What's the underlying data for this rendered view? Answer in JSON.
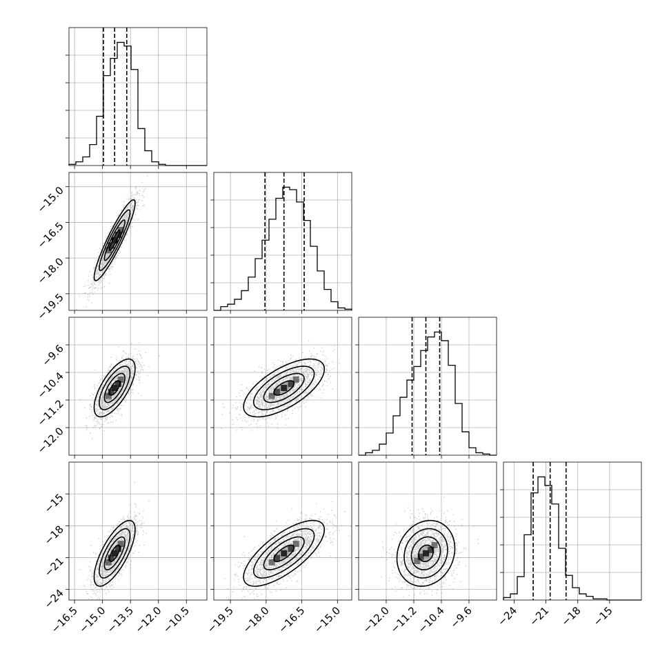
{
  "chart_data": {
    "type": "corner",
    "parameters": [
      {
        "range": [
          -16.8,
          -9.4
        ],
        "ticks": [
          -16.5,
          -15.0,
          -13.5,
          -12.0,
          -10.5
        ],
        "tick_labels": [
          "−16.5",
          "−15.0",
          "−13.5",
          "−12.0",
          "−10.5"
        ],
        "quantiles": [
          -14.95,
          -14.35,
          -13.7
        ],
        "hist_max": 1.0,
        "hist_bins": [
          0.01,
          0.03,
          0.07,
          0.17,
          0.4,
          0.73,
          0.87,
          1.0,
          0.97,
          0.78,
          0.3,
          0.12,
          0.03,
          0.01,
          0.0,
          0.0,
          0.0,
          0.0,
          0.0,
          0.0
        ]
      },
      {
        "range": [
          -20.2,
          -14.4
        ],
        "ticks": [
          -19.5,
          -18.0,
          -16.5,
          -15.0
        ],
        "tick_labels": [
          "−19.5",
          "−18.0",
          "−16.5",
          "−15.0"
        ],
        "quantiles": [
          -18.05,
          -17.25,
          -16.4
        ],
        "hist_max": 1.0,
        "hist_bins": [
          0.0,
          0.03,
          0.05,
          0.09,
          0.16,
          0.27,
          0.42,
          0.57,
          0.74,
          0.91,
          1.0,
          0.98,
          0.88,
          0.73,
          0.52,
          0.32,
          0.17,
          0.07,
          0.02,
          0.01
        ]
      },
      {
        "range": [
          -12.8,
          -8.8
        ],
        "ticks": [
          -12.0,
          -11.2,
          -10.4,
          -9.6
        ],
        "tick_labels": [
          "−12.0",
          "−11.2",
          "−10.4",
          "−9.6"
        ],
        "quantiles": [
          -11.25,
          -10.85,
          -10.45
        ],
        "hist_max": 1.0,
        "hist_bins": [
          0.0,
          0.02,
          0.04,
          0.09,
          0.18,
          0.32,
          0.47,
          0.61,
          0.72,
          0.85,
          0.96,
          1.0,
          0.93,
          0.73,
          0.42,
          0.19,
          0.06,
          0.02,
          0.01,
          0.0
        ]
      },
      {
        "range": [
          -25.0,
          -12.0
        ],
        "ticks": [
          -24,
          -21,
          -18,
          -15
        ],
        "tick_labels": [
          "−24",
          "−21",
          "−18",
          "−15"
        ],
        "quantiles": [
          -22.2,
          -20.6,
          -19.1
        ],
        "hist_max": 1.0,
        "hist_bins": [
          0.02,
          0.05,
          0.19,
          0.53,
          0.87,
          1.0,
          0.93,
          0.78,
          0.42,
          0.2,
          0.1,
          0.05,
          0.03,
          0.01,
          0.01,
          0.0,
          0.0,
          0.0,
          0.0,
          0.0
        ]
      }
    ],
    "pairs": [
      {
        "x": 0,
        "y": 1,
        "mean": [
          -14.35,
          -17.25
        ],
        "sd": [
          0.55,
          0.85
        ],
        "corr": 0.92
      },
      {
        "x": 0,
        "y": 2,
        "mean": [
          -14.35,
          -10.85
        ],
        "sd": [
          0.55,
          0.42
        ],
        "corr": 0.68
      },
      {
        "x": 1,
        "y": 2,
        "mean": [
          -17.25,
          -10.85
        ],
        "sd": [
          0.85,
          0.42
        ],
        "corr": 0.65
      },
      {
        "x": 0,
        "y": 3,
        "mean": [
          -14.35,
          -20.6
        ],
        "sd": [
          0.55,
          1.55
        ],
        "corr": 0.72
      },
      {
        "x": 1,
        "y": 3,
        "mean": [
          -17.25,
          -20.6
        ],
        "sd": [
          0.85,
          1.55
        ],
        "corr": 0.72
      },
      {
        "x": 2,
        "y": 3,
        "mean": [
          -10.85,
          -20.6
        ],
        "sd": [
          0.42,
          1.55
        ],
        "corr": 0.15
      }
    ],
    "contour_sigma_levels": [
      0.5,
      1.0,
      1.5,
      2.0
    ],
    "colors": {
      "line": "#000000",
      "grid": "#b0b0b0",
      "points": "#707070"
    }
  }
}
